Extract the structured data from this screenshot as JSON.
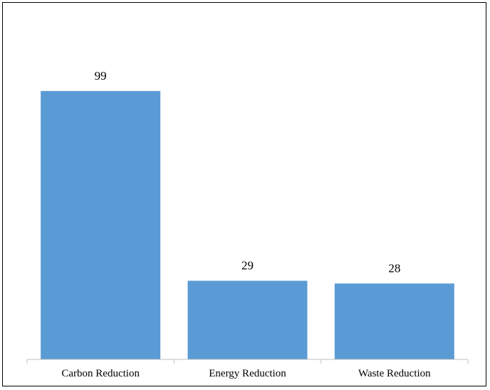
{
  "chart_data": {
    "type": "bar",
    "categories": [
      "Carbon Reduction",
      "Energy Reduction",
      "Waste Reduction"
    ],
    "values": [
      99,
      29,
      28
    ],
    "data_labels": [
      "99",
      "29",
      "28"
    ],
    "title": "",
    "xlabel": "",
    "ylabel": "",
    "ylim": [
      0,
      105
    ],
    "grid": false,
    "legend": "none",
    "colors": {
      "bar": "#5B9BD5",
      "axis": "#BFBFBF",
      "border": "#000000"
    }
  }
}
